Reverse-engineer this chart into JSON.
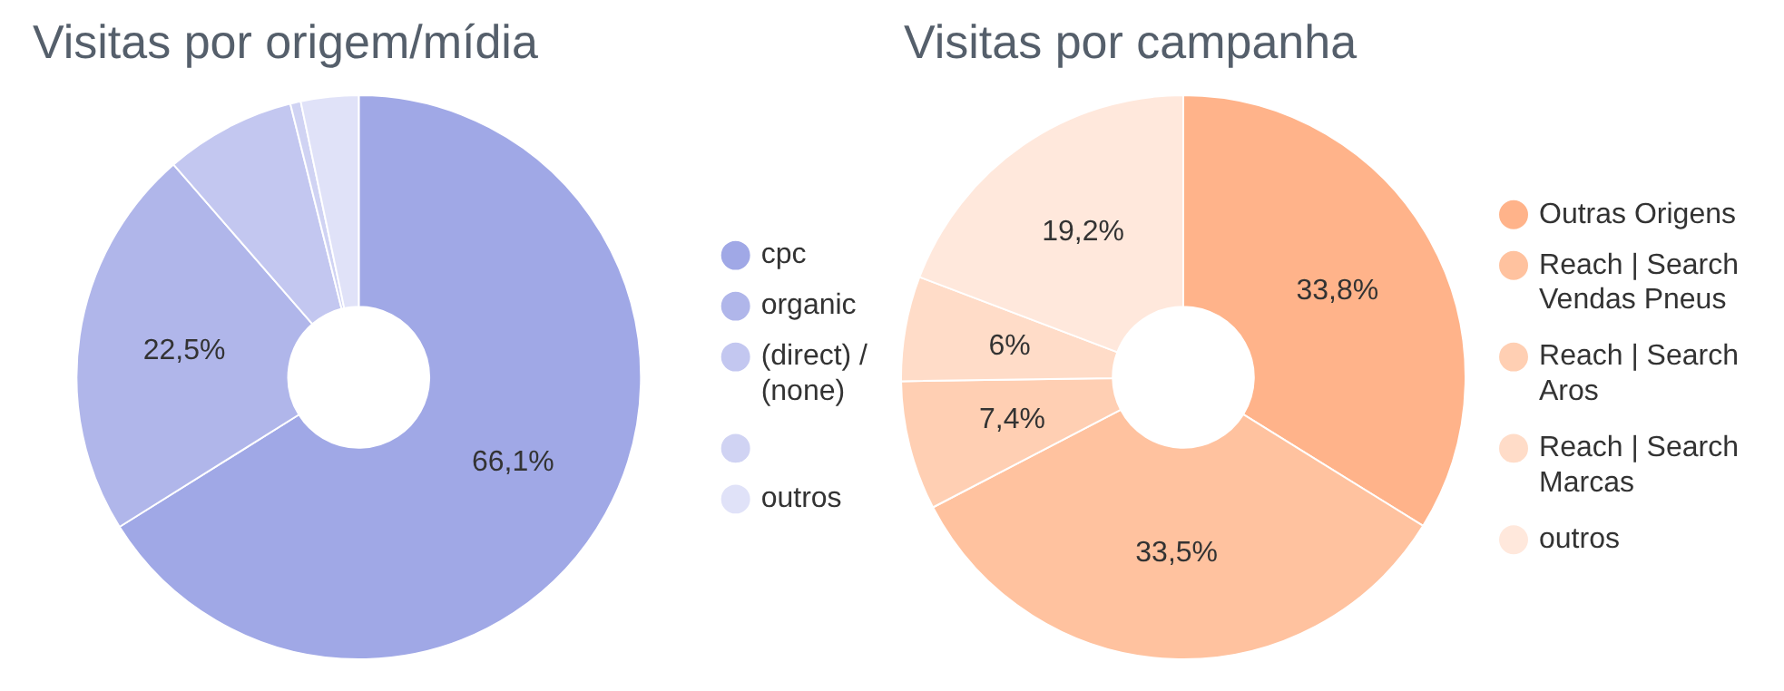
{
  "chart_data": [
    {
      "type": "donut",
      "title": "Visitas por origem/mídia",
      "categories": [
        "cpc",
        "organic",
        "(direct) / (none)",
        null,
        "outros"
      ],
      "values": [
        66.1,
        22.5,
        7.5,
        0.6,
        3.3
      ],
      "colors": [
        "#a0a8e6",
        "#b0b6ea",
        "#c3c7f0",
        "#d0d3f3",
        "#e0e2f8"
      ],
      "value_labels": [
        "66,1%",
        "22,5%",
        null,
        null,
        null
      ],
      "legend": "right"
    },
    {
      "type": "donut",
      "title": "Visitas por campanha",
      "categories": [
        "Outras Origens",
        "Reach | Search Vendas Pneus",
        "Reach | Search Aros",
        "Reach | Search Marcas",
        "outros"
      ],
      "values": [
        33.8,
        33.5,
        7.4,
        6,
        19.2
      ],
      "colors": [
        "#ffb38a",
        "#ffc29f",
        "#ffcfb3",
        "#ffdcc8",
        "#ffe8dc"
      ],
      "value_labels": [
        "33,8%",
        "33,5%",
        "7,4%",
        "6%",
        "19,2%"
      ],
      "legend": "right"
    }
  ]
}
